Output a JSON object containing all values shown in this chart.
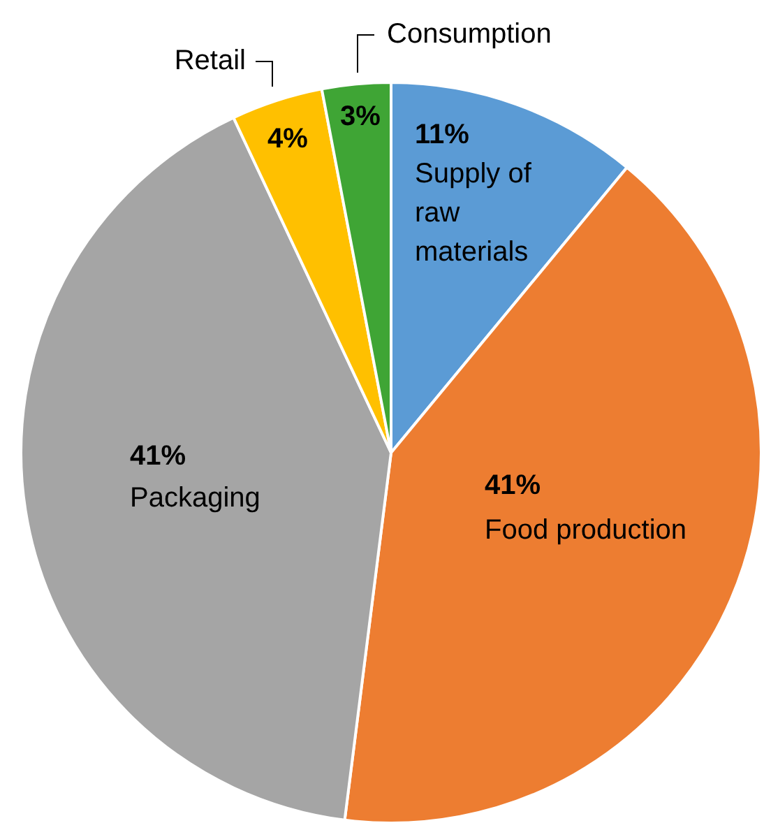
{
  "chart_data": {
    "type": "pie",
    "categories": [
      "Supply of raw materials",
      "Food production",
      "Packaging",
      "Retail",
      "Consumption"
    ],
    "values": [
      11,
      41,
      41,
      4,
      3
    ],
    "colors": [
      "#5b9bd5",
      "#ed7d31",
      "#a5a5a5",
      "#ffc000",
      "#3fa535"
    ],
    "value_labels": [
      "11%",
      "41%",
      "41%",
      "4%",
      "3%"
    ],
    "legend": false
  }
}
